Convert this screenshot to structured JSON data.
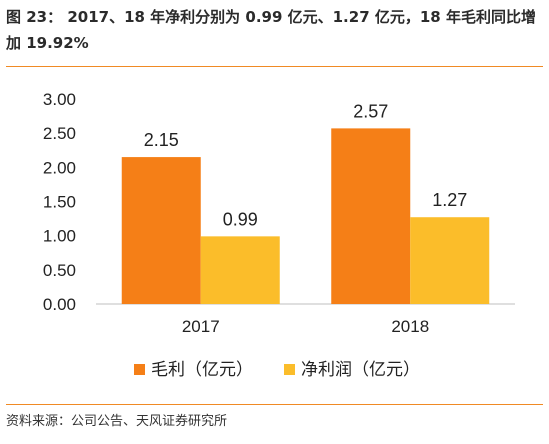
{
  "header": {
    "title": "图 23：  2017、18 年净利分别为 0.99 亿元、1.27 亿元，18 年毛利同比增加 19.92%"
  },
  "footer": {
    "source": "资料来源：公司公告、天风证券研究所"
  },
  "chart_data": {
    "type": "bar",
    "categories": [
      "2017",
      "2018"
    ],
    "series": [
      {
        "name": "毛利（亿元）",
        "values": [
          2.15,
          2.57
        ],
        "color": "#f57f17"
      },
      {
        "name": "净利润（亿元）",
        "values": [
          0.99,
          1.27
        ],
        "color": "#fbbd2a"
      }
    ],
    "yticks": [
      "0.00",
      "0.50",
      "1.00",
      "1.50",
      "2.00",
      "2.50",
      "3.00"
    ],
    "ylim": [
      0,
      3
    ],
    "data_labels": true,
    "grid": false,
    "legend_position": "bottom"
  }
}
